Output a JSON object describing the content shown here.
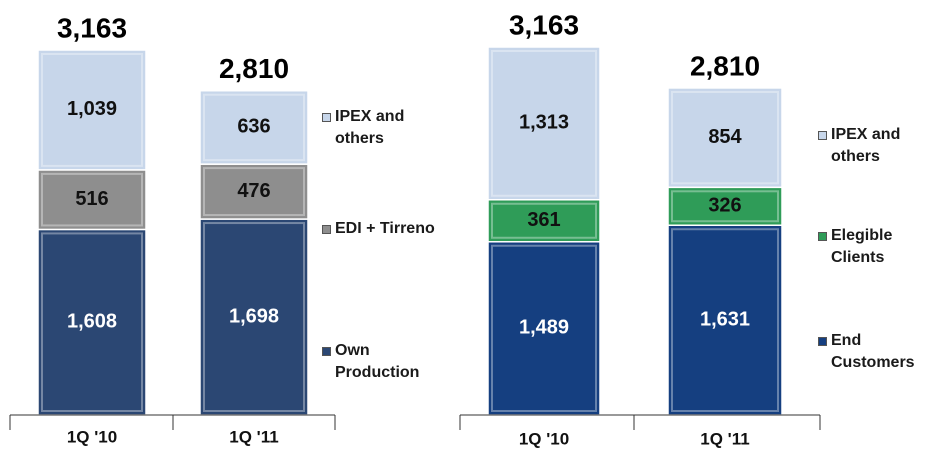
{
  "chart_data": [
    {
      "type": "stacked-bar",
      "categories": [
        "1Q '10",
        "1Q '11"
      ],
      "totals": [
        3163,
        2810
      ],
      "total_labels": [
        "3,163",
        "2,810"
      ],
      "series": [
        {
          "name": "Own Production",
          "color": "#2b4773",
          "label_color": "#ffffff",
          "values": [
            1608,
            1698
          ],
          "value_labels": [
            "1,608",
            "1,698"
          ]
        },
        {
          "name": "EDI + Tirreno",
          "color": "#8e8e8e",
          "label_color": "#111111",
          "values": [
            516,
            476
          ],
          "value_labels": [
            "516",
            "476"
          ]
        },
        {
          "name": "IPEX and others",
          "color": "#c7d6ea",
          "label_color": "#111111",
          "values": [
            1039,
            636
          ],
          "value_labels": [
            "1,039",
            "636"
          ]
        }
      ]
    },
    {
      "type": "stacked-bar",
      "categories": [
        "1Q '10",
        "1Q '11"
      ],
      "totals": [
        3163,
        2810
      ],
      "total_labels": [
        "3,163",
        "2,810"
      ],
      "series": [
        {
          "name": "End Customers",
          "color": "#153f80",
          "label_color": "#ffffff",
          "values": [
            1489,
            1631
          ],
          "value_labels": [
            "1,489",
            "1,631"
          ]
        },
        {
          "name": "Elegible Clients",
          "color": "#2f9c58",
          "label_color": "#111111",
          "values": [
            361,
            326
          ],
          "value_labels": [
            "361",
            "326"
          ]
        },
        {
          "name": "IPEX and others",
          "color": "#c7d6ea",
          "label_color": "#111111",
          "values": [
            1313,
            854
          ],
          "value_labels": [
            "1,313",
            "854"
          ]
        }
      ]
    }
  ]
}
